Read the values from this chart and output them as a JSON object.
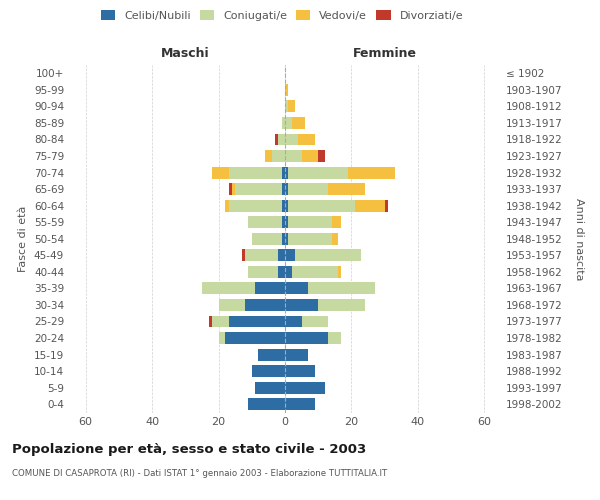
{
  "age_groups": [
    "0-4",
    "5-9",
    "10-14",
    "15-19",
    "20-24",
    "25-29",
    "30-34",
    "35-39",
    "40-44",
    "45-49",
    "50-54",
    "55-59",
    "60-64",
    "65-69",
    "70-74",
    "75-79",
    "80-84",
    "85-89",
    "90-94",
    "95-99",
    "100+"
  ],
  "birth_years": [
    "1998-2002",
    "1993-1997",
    "1988-1992",
    "1983-1987",
    "1978-1982",
    "1973-1977",
    "1968-1972",
    "1963-1967",
    "1958-1962",
    "1953-1957",
    "1948-1952",
    "1943-1947",
    "1938-1942",
    "1933-1937",
    "1928-1932",
    "1923-1927",
    "1918-1922",
    "1913-1917",
    "1908-1912",
    "1903-1907",
    "≤ 1902"
  ],
  "male": {
    "celibi": [
      11,
      9,
      10,
      8,
      18,
      17,
      12,
      9,
      2,
      2,
      1,
      1,
      1,
      1,
      1,
      0,
      0,
      0,
      0,
      0,
      0
    ],
    "coniugati": [
      0,
      0,
      0,
      0,
      2,
      5,
      8,
      16,
      9,
      10,
      9,
      10,
      16,
      14,
      16,
      4,
      2,
      1,
      0,
      0,
      0
    ],
    "vedovi": [
      0,
      0,
      0,
      0,
      0,
      0,
      0,
      0,
      0,
      0,
      0,
      0,
      1,
      1,
      5,
      2,
      0,
      0,
      0,
      0,
      0
    ],
    "divorziati": [
      0,
      0,
      0,
      0,
      0,
      1,
      0,
      0,
      0,
      1,
      0,
      0,
      0,
      1,
      0,
      0,
      1,
      0,
      0,
      0,
      0
    ]
  },
  "female": {
    "nubili": [
      9,
      12,
      9,
      7,
      13,
      5,
      10,
      7,
      2,
      3,
      1,
      1,
      1,
      1,
      1,
      0,
      0,
      0,
      0,
      0,
      0
    ],
    "coniugate": [
      0,
      0,
      0,
      0,
      4,
      8,
      14,
      20,
      14,
      20,
      13,
      13,
      20,
      12,
      18,
      5,
      4,
      2,
      1,
      0,
      0
    ],
    "vedove": [
      0,
      0,
      0,
      0,
      0,
      0,
      0,
      0,
      1,
      0,
      2,
      3,
      9,
      11,
      14,
      5,
      5,
      4,
      2,
      1,
      0
    ],
    "divorziate": [
      0,
      0,
      0,
      0,
      0,
      0,
      0,
      0,
      0,
      0,
      0,
      0,
      1,
      0,
      0,
      2,
      0,
      0,
      0,
      0,
      0
    ]
  },
  "colors": {
    "celibi": "#2E6DA4",
    "coniugati": "#C5D9A0",
    "vedovi": "#F5C040",
    "divorziati": "#C0392B"
  },
  "xlim": 65,
  "title": "Popolazione per età, sesso e stato civile - 2003",
  "subtitle": "COMUNE DI CASAPROTA (RI) - Dati ISTAT 1° gennaio 2003 - Elaborazione TUTTITALIA.IT",
  "ylabel_left": "Fasce di età",
  "ylabel_right": "Anni di nascita",
  "xlabel_left": "Maschi",
  "xlabel_right": "Femmine"
}
